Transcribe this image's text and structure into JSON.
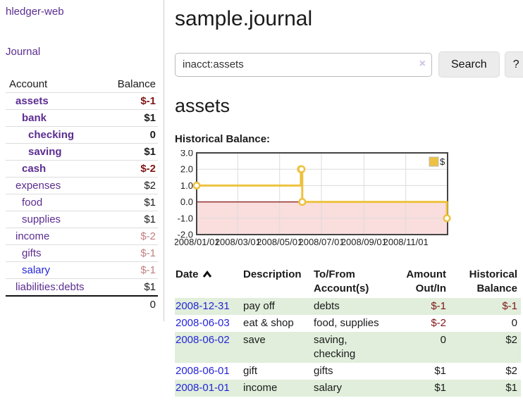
{
  "sidebar": {
    "brand": "hledger-web",
    "nav_journal": "Journal",
    "table": {
      "headers": [
        "Account",
        "Balance"
      ],
      "rows": [
        {
          "account": "assets",
          "balance": "$-1",
          "level": 1,
          "bold": true,
          "negative": true
        },
        {
          "account": "bank",
          "balance": "$1",
          "level": 2,
          "bold": true,
          "negative": false
        },
        {
          "account": "checking",
          "balance": "0",
          "level": 3,
          "bold": true,
          "negative": false
        },
        {
          "account": "saving",
          "balance": "$1",
          "level": 3,
          "bold": true,
          "negative": false
        },
        {
          "account": "cash",
          "balance": "$-2",
          "level": 2,
          "bold": true,
          "negative": true
        },
        {
          "account": "expenses",
          "balance": "$2",
          "level": 1,
          "bold": false,
          "negative": false
        },
        {
          "account": "food",
          "balance": "$1",
          "level": 2,
          "bold": false,
          "negative": false
        },
        {
          "account": "supplies",
          "balance": "$1",
          "level": 2,
          "bold": false,
          "negative": false
        },
        {
          "account": "income",
          "balance": "$-2",
          "level": 1,
          "bold": false,
          "negative": true
        },
        {
          "account": "gifts",
          "balance": "$-1",
          "level": 2,
          "bold": false,
          "negative": true
        },
        {
          "account": "salary",
          "balance": "$-1",
          "level": 2,
          "bold": false,
          "negative": true,
          "account_color": "#2525d8"
        },
        {
          "account": "liabilities:debts",
          "balance": "$1",
          "level": 1,
          "bold": false,
          "negative": false
        }
      ],
      "total": "0"
    }
  },
  "header": {
    "title": "sample.journal"
  },
  "search": {
    "value": "inacct:assets",
    "clear_label": "×",
    "search_button": "Search",
    "help_button": "?"
  },
  "account_page": {
    "heading": "assets",
    "chart_label": "Historical Balance:"
  },
  "chart_data": {
    "type": "line",
    "title": "Historical Balance:",
    "steps": true,
    "series": [
      {
        "name": "$",
        "color": "#edc240",
        "points": [
          [
            "2008-01-01",
            1
          ],
          [
            "2008-06-01",
            2
          ],
          [
            "2008-06-02",
            2
          ],
          [
            "2008-06-03",
            0
          ],
          [
            "2008-12-31",
            -1
          ]
        ]
      }
    ],
    "x_range": [
      "2008-01-01",
      "2009-01-01"
    ],
    "x_tick_labels": [
      "2008/01/01",
      "2008/03/01",
      "2008/05/01",
      "2008/07/01",
      "2008/09/01",
      "2008/11/01"
    ],
    "x_tick_dates": [
      "2008-01-01",
      "2008-03-01",
      "2008-05-01",
      "2008-07-01",
      "2008-09-01",
      "2008-11-01"
    ],
    "y_ticks": [
      "3.0",
      "2.0",
      "1.0",
      "0.0",
      "-1.0",
      "-2.0"
    ],
    "ylim": [
      -2,
      3
    ],
    "grid": true,
    "legend_position": "top-right",
    "colors": {
      "negative_region": "#fadddd",
      "zero_line": "#801515",
      "gridline": "#dcdcdc",
      "border": "#444444"
    }
  },
  "transactions": {
    "headers": [
      {
        "label": "Date",
        "sorted": true,
        "align": "left"
      },
      {
        "label": "Description",
        "align": "left"
      },
      {
        "label": "To/From Account(s)",
        "align": "left"
      },
      {
        "label": "Amount Out/In",
        "align": "right"
      },
      {
        "label": "Historical Balance",
        "align": "right"
      }
    ],
    "rows": [
      {
        "date": "2008-12-31",
        "description": "pay off",
        "accounts": "debts",
        "amount": "$-1",
        "amount_negative": true,
        "balance": "$-1",
        "balance_negative": true
      },
      {
        "date": "2008-06-03",
        "description": "eat & shop",
        "accounts": "food, supplies",
        "amount": "$-2",
        "amount_negative": true,
        "balance": "0",
        "balance_negative": false
      },
      {
        "date": "2008-06-02",
        "description": "save",
        "accounts": "saving, checking",
        "amount": "0",
        "amount_negative": false,
        "balance": "$2",
        "balance_negative": false
      },
      {
        "date": "2008-06-01",
        "description": "gift",
        "accounts": "gifts",
        "amount": "$1",
        "amount_negative": false,
        "balance": "$2",
        "balance_negative": false
      },
      {
        "date": "2008-01-01",
        "description": "income",
        "accounts": "salary",
        "amount": "$1",
        "amount_negative": false,
        "balance": "$1",
        "balance_negative": false
      }
    ]
  }
}
